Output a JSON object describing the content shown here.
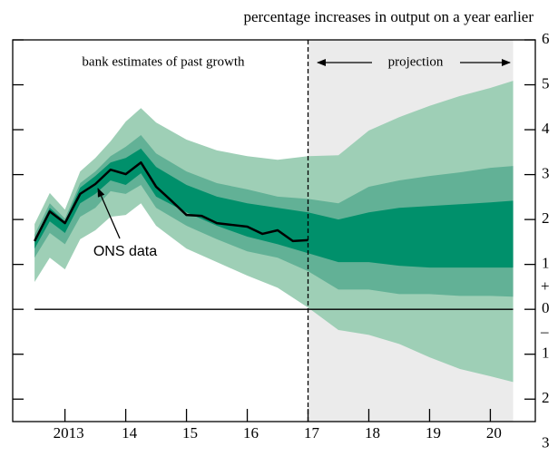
{
  "chart_data": {
    "type": "fan",
    "title": "percentage increases in output on a year earlier",
    "annotations": {
      "past": "bank estimates of past growth",
      "projection": "projection",
      "plus": "+",
      "minus": "–"
    },
    "xlim": [
      2012.14,
      2020.74
    ],
    "ylim": [
      -2.5,
      6
    ],
    "xticks": [
      {
        "value": 2013,
        "label": "2013"
      },
      {
        "value": 2014,
        "label": "14"
      },
      {
        "value": 2015,
        "label": "15"
      },
      {
        "value": 2016,
        "label": "16"
      },
      {
        "value": 2017,
        "label": "17"
      },
      {
        "value": 2018,
        "label": "18"
      },
      {
        "value": 2019,
        "label": "19"
      },
      {
        "value": 2020,
        "label": "20"
      }
    ],
    "yticks": [
      {
        "value": -3,
        "label": "3"
      },
      {
        "value": -2,
        "label": "2"
      },
      {
        "value": -1,
        "label": "1"
      },
      0,
      1,
      2,
      3,
      4,
      5,
      6
    ],
    "projection_start": 2017,
    "projection_color": "#ebebeb",
    "fan_x": [
      2012.5,
      2012.75,
      2013,
      2013.25,
      2013.5,
      2013.75,
      2014,
      2014.25,
      2014.5,
      2015,
      2015.5,
      2016,
      2016.5,
      2017,
      2017.5,
      2018,
      2018.5,
      2019,
      2019.5,
      2020,
      2020.375
    ],
    "bands": [
      {
        "color": "#9ecfb6",
        "upper": [
          1.9,
          2.59,
          2.22,
          3.07,
          3.37,
          3.74,
          4.18,
          4.48,
          4.16,
          3.78,
          3.54,
          3.41,
          3.33,
          3.41,
          3.43,
          3.98,
          4.28,
          4.53,
          4.75,
          4.93,
          5.09
        ],
        "lower": [
          0.61,
          1.15,
          0.89,
          1.56,
          1.76,
          2.06,
          2.1,
          2.36,
          1.86,
          1.35,
          1.05,
          0.75,
          0.48,
          0.04,
          -0.46,
          -0.57,
          -0.77,
          -1.07,
          -1.33,
          -1.49,
          -1.62
        ]
      },
      {
        "color": "#62b196",
        "upper": [
          1.66,
          2.36,
          2.02,
          2.81,
          3.07,
          3.41,
          3.62,
          3.88,
          3.47,
          3.07,
          2.81,
          2.67,
          2.51,
          2.46,
          2.36,
          2.73,
          2.87,
          2.97,
          3.05,
          3.15,
          3.19
        ],
        "lower": [
          1.15,
          1.7,
          1.45,
          2.06,
          2.26,
          2.63,
          2.57,
          2.77,
          2.26,
          1.86,
          1.56,
          1.29,
          1.15,
          0.85,
          0.44,
          0.44,
          0.34,
          0.34,
          0.3,
          0.3,
          0.28
        ]
      },
      {
        "color": "#00906b",
        "upper": [
          1.56,
          2.26,
          1.96,
          2.71,
          2.97,
          3.27,
          3.37,
          3.58,
          3.17,
          2.77,
          2.51,
          2.36,
          2.26,
          2.16,
          2.0,
          2.16,
          2.26,
          2.3,
          2.34,
          2.38,
          2.42
        ],
        "lower": [
          1.35,
          1.96,
          1.7,
          2.36,
          2.57,
          2.87,
          2.77,
          3.03,
          2.51,
          2.16,
          1.86,
          1.62,
          1.45,
          1.25,
          1.05,
          1.05,
          0.97,
          0.93,
          0.93,
          0.93,
          0.93
        ]
      }
    ],
    "series": [
      {
        "name": "ONS data",
        "color": "#000000",
        "x": [
          2012.5,
          2012.75,
          2013,
          2013.25,
          2013.5,
          2013.75,
          2014,
          2014.25,
          2014.5,
          2014.75,
          2015,
          2015.25,
          2015.5,
          2015.75,
          2016,
          2016.25,
          2016.5,
          2016.75,
          2017
        ],
        "values": [
          1.52,
          2.18,
          1.92,
          2.57,
          2.79,
          3.11,
          3.01,
          3.27,
          2.73,
          2.42,
          2.1,
          2.08,
          1.92,
          1.88,
          1.84,
          1.68,
          1.76,
          1.52,
          1.54
        ]
      }
    ]
  }
}
